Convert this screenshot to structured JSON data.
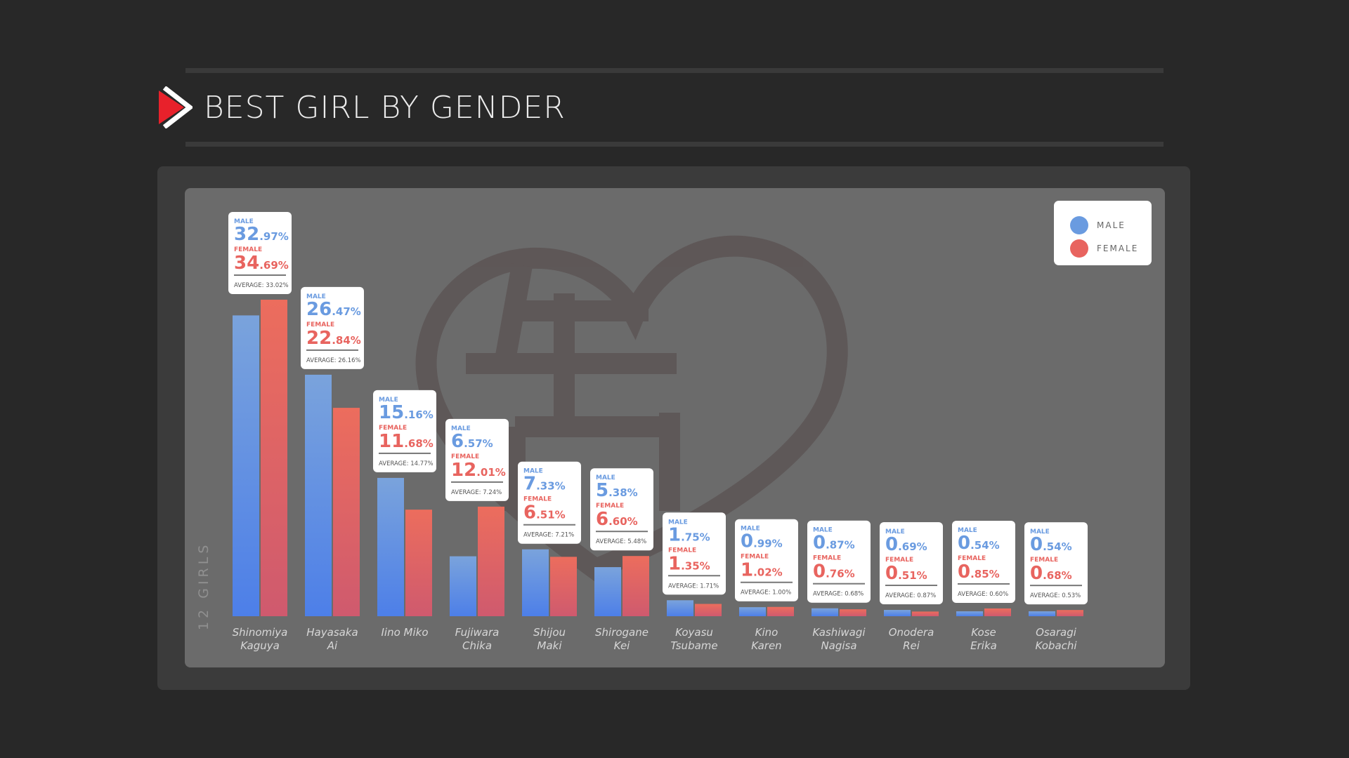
{
  "header": {
    "title": "BEST GIRL BY GENDER"
  },
  "colors": {
    "male": "#6a9be0",
    "female": "#e8645f",
    "background": "#282828",
    "panel": "#3b3b3b",
    "plot": "#6b6b6b",
    "logo": "#e8212b"
  },
  "icons": {
    "logo": "play-triangle-icon"
  },
  "chart_data": {
    "type": "bar",
    "title": "BEST GIRL BY GENDER",
    "ylabel": "12 GIRLS",
    "xlabel": "",
    "legend_position": "top-right",
    "grid": false,
    "ylim": [
      0,
      40
    ],
    "legend": [
      "MALE",
      "FEMALE"
    ],
    "card_labels": {
      "male": "MALE",
      "female": "FEMALE",
      "average": "AVERAGE:"
    },
    "categories": [
      [
        "Shinomiya",
        "Kaguya"
      ],
      [
        "Hayasaka",
        "Ai"
      ],
      [
        "Iino Miko"
      ],
      [
        "Fujiwara",
        "Chika"
      ],
      [
        "Shijou",
        "Maki"
      ],
      [
        "Shirogane",
        "Kei"
      ],
      [
        "Koyasu",
        "Tsubame"
      ],
      [
        "Kino",
        "Karen"
      ],
      [
        "Kashiwagi",
        "Nagisa"
      ],
      [
        "Onodera",
        "Rei"
      ],
      [
        "Kose",
        "Erika"
      ],
      [
        "Osaragi",
        "Kobachi"
      ]
    ],
    "series": [
      {
        "name": "MALE",
        "values": [
          32.97,
          26.47,
          15.16,
          6.57,
          7.33,
          5.38,
          1.75,
          0.99,
          0.87,
          0.69,
          0.54,
          0.54
        ],
        "labels": [
          "32.97%",
          "26.47%",
          "15.16%",
          "6.57%",
          "7.33%",
          "5.38%",
          "1.75%",
          "0.99%",
          "0.87%",
          "0.69%",
          "0.54%",
          "0.54%"
        ]
      },
      {
        "name": "FEMALE",
        "values": [
          34.69,
          22.84,
          11.68,
          12.01,
          6.51,
          6.6,
          1.35,
          1.02,
          0.76,
          0.51,
          0.85,
          0.68
        ],
        "labels": [
          "34.69%",
          "22.84%",
          "11.68%",
          "12.01%",
          "6.51%",
          "6.60%",
          "1.35%",
          "1.02%",
          "0.76%",
          "0.51%",
          "0.85%",
          "0.68%"
        ]
      }
    ],
    "average": [
      "33.02%",
      "26.16%",
      "14.77%",
      "7.24%",
      "7.21%",
      "5.48%",
      "1.71%",
      "1.00%",
      "0.68%",
      "0.87%",
      "0.60%",
      "0.53%"
    ]
  }
}
